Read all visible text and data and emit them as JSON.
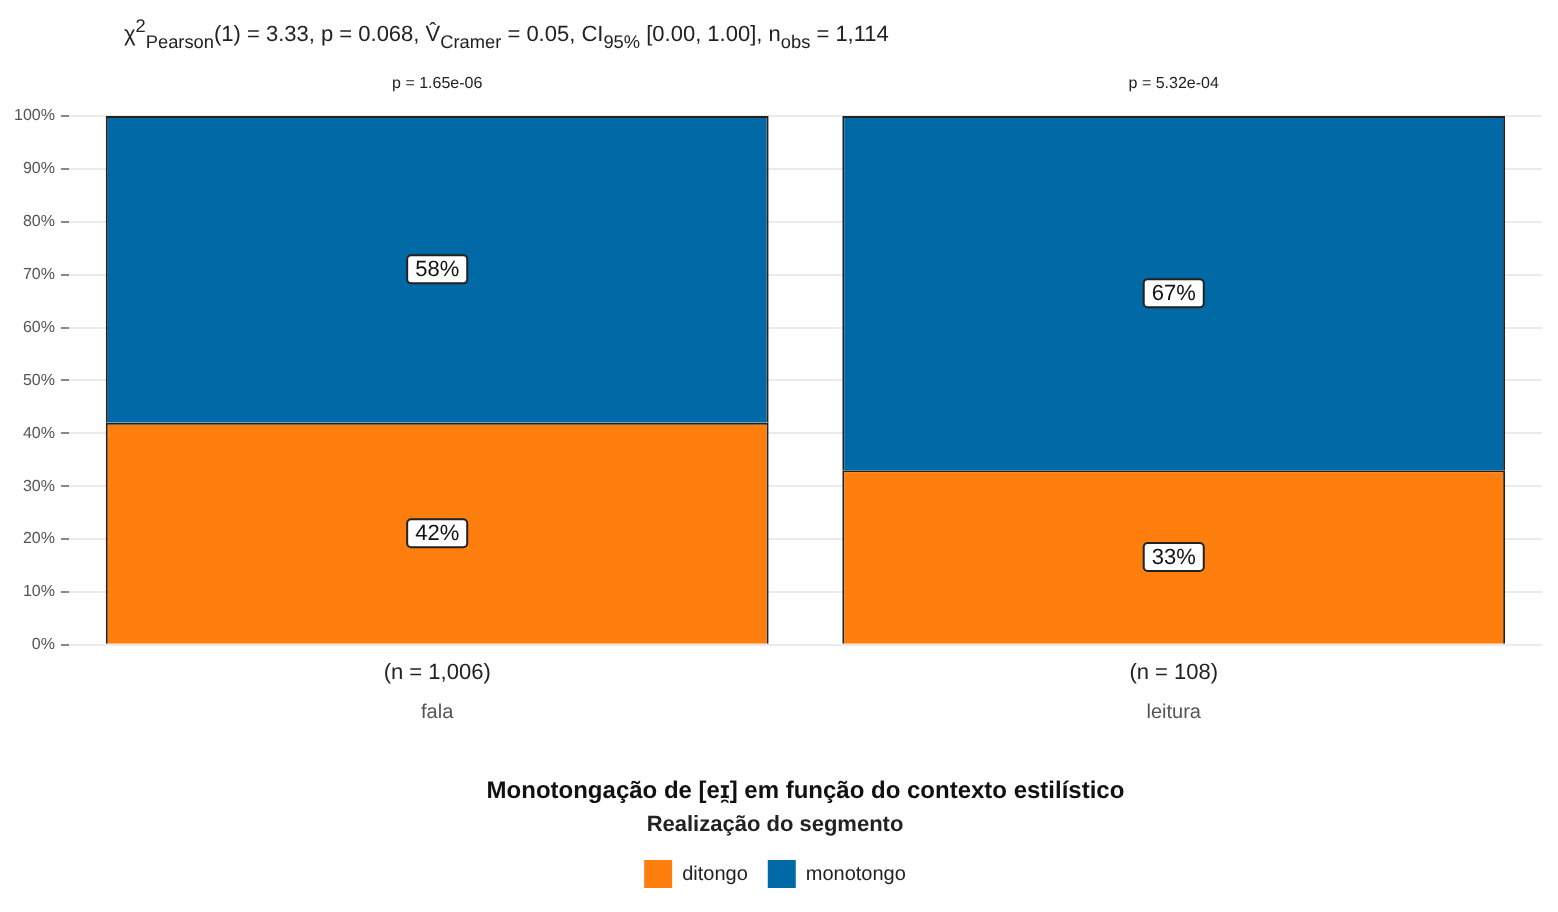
{
  "chart_data": {
    "type": "bar",
    "stacked": true,
    "title": "χ$^{2}$$_{Pearson}$(1) = 3.33, p = 0.068, V̂$_{Cramer}$ = 0.05, CI$_{95%}$ [0.00, 1.00], n$_{obs}$ = 1,114",
    "xlabel": "Monotongação de [eɪ̯] em função do contexto estilístico",
    "legend_title": "Realização do segmento",
    "categories": [
      "fala",
      "leitura"
    ],
    "series": [
      {
        "name": "ditongo",
        "color": "#ff7f0e",
        "values": [
          42,
          33
        ],
        "value_labels": [
          "42%",
          "33%"
        ]
      },
      {
        "name": "monotongo",
        "color": "#0069a6",
        "values": [
          58,
          67
        ],
        "value_labels": [
          "58%",
          "67%"
        ]
      }
    ],
    "ylim": [
      0,
      100
    ],
    "yticks": [
      {
        "value": 0,
        "label": "0%"
      },
      {
        "value": 10,
        "label": "10%"
      },
      {
        "value": 20,
        "label": "20%"
      },
      {
        "value": 30,
        "label": "30%"
      },
      {
        "value": 40,
        "label": "40%"
      },
      {
        "value": 50,
        "label": "50%"
      },
      {
        "value": 60,
        "label": "60%"
      },
      {
        "value": 70,
        "label": "70%"
      },
      {
        "value": 80,
        "label": "80%"
      },
      {
        "value": 90,
        "label": "90%"
      },
      {
        "value": 100,
        "label": "100%"
      }
    ],
    "annotations": [
      {
        "text": "p = 1.65e-06",
        "x": "fala",
        "y": 100
      },
      {
        "text": "p = 5.32e-04",
        "x": "leitura",
        "y": 100
      },
      "(n = 1,006)",
      "(n = 108)"
    ],
    "grid": "y",
    "legend": "bottom"
  }
}
